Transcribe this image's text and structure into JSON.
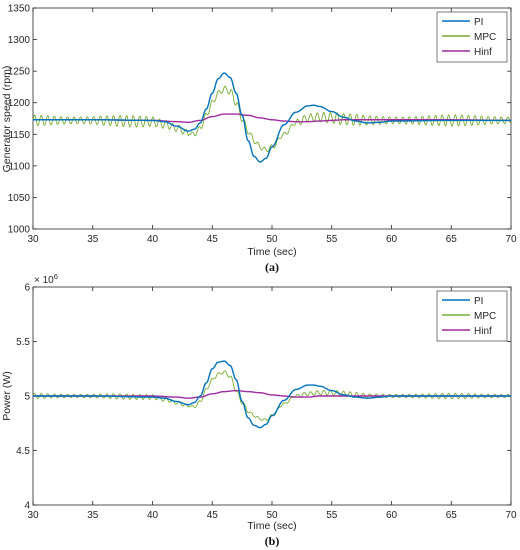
{
  "chart_data": [
    {
      "type": "line",
      "caption": "(a)",
      "xlabel": "Time (sec)",
      "ylabel": "Generator speed (rpm)",
      "xlim": [
        30,
        70
      ],
      "ylim": [
        1000,
        1350
      ],
      "xticks": [
        "30",
        "35",
        "40",
        "45",
        "50",
        "55",
        "60",
        "65",
        "70"
      ],
      "yticks": [
        "1000",
        "1050",
        "1100",
        "1150",
        "1200",
        "1250",
        "1300",
        "1350"
      ],
      "grid": false,
      "legend_position": "top-right",
      "series": [
        {
          "name": "PI",
          "color": "#0072BD",
          "x": [
            30,
            35,
            40,
            41,
            42,
            43,
            43.5,
            44,
            44.5,
            45,
            45.5,
            46,
            46.5,
            47,
            47.5,
            48,
            48.5,
            49,
            49.5,
            50,
            51,
            52,
            53,
            53.5,
            54,
            55,
            56,
            57,
            58,
            59,
            60,
            65,
            70
          ],
          "y": [
            1173,
            1173,
            1172,
            1170,
            1163,
            1155,
            1158,
            1168,
            1190,
            1215,
            1238,
            1247,
            1240,
            1215,
            1180,
            1140,
            1115,
            1106,
            1112,
            1130,
            1165,
            1185,
            1195,
            1196,
            1194,
            1186,
            1177,
            1171,
            1168,
            1169,
            1171,
            1172,
            1172
          ]
        },
        {
          "name": "MPC",
          "color": "#77AC30",
          "x": [
            30,
            35,
            40,
            41,
            42,
            43,
            43.5,
            44,
            44.5,
            45,
            45.5,
            46,
            46.5,
            47,
            47.5,
            48,
            48.5,
            49,
            49.5,
            50,
            51,
            52,
            53,
            54,
            55,
            56,
            57,
            58,
            60,
            65,
            70
          ],
          "y": [
            1172,
            1172,
            1170,
            1166,
            1160,
            1152,
            1150,
            1160,
            1180,
            1200,
            1215,
            1222,
            1218,
            1200,
            1175,
            1155,
            1140,
            1130,
            1125,
            1130,
            1150,
            1168,
            1176,
            1177,
            1176,
            1174,
            1173,
            1172,
            1172,
            1172,
            1172
          ],
          "oscillation_amplitude": 9,
          "oscillation_period_sec": 0.55
        },
        {
          "name": "Hinf",
          "color": "#A02CA0",
          "x": [
            30,
            35,
            40,
            42,
            43,
            44,
            45,
            46,
            47,
            48,
            49,
            50,
            51,
            52,
            53,
            54,
            55,
            56,
            58,
            60,
            65,
            70
          ],
          "y": [
            1173,
            1173,
            1172,
            1170,
            1169,
            1172,
            1178,
            1182,
            1182,
            1180,
            1176,
            1173,
            1171,
            1170,
            1170,
            1171,
            1172,
            1173,
            1173,
            1173,
            1173,
            1172
          ]
        }
      ]
    },
    {
      "type": "line",
      "caption": "(b)",
      "xlabel": "Time (sec)",
      "ylabel": "Power (W)",
      "exponent_label": "× 10",
      "exponent_power": "6",
      "xlim": [
        30,
        70
      ],
      "ylim": [
        4,
        6
      ],
      "xticks": [
        "30",
        "35",
        "40",
        "45",
        "50",
        "55",
        "60",
        "65",
        "70"
      ],
      "yticks": [
        "4",
        "4.5",
        "5",
        "5.5",
        "6"
      ],
      "grid": false,
      "legend_position": "top-right",
      "series": [
        {
          "name": "PI",
          "color": "#0072BD",
          "x": [
            30,
            35,
            40,
            41,
            42,
            43,
            43.5,
            44,
            44.5,
            45,
            45.5,
            46,
            46.5,
            47,
            47.5,
            48,
            48.5,
            49,
            49.5,
            50,
            51,
            52,
            53,
            53.5,
            54,
            55,
            56,
            57,
            58,
            59,
            60,
            65,
            70
          ],
          "y": [
            5.0,
            5.0,
            4.99,
            4.98,
            4.95,
            4.92,
            4.94,
            5.0,
            5.12,
            5.25,
            5.31,
            5.32,
            5.28,
            5.15,
            4.95,
            4.8,
            4.73,
            4.71,
            4.74,
            4.82,
            4.96,
            5.06,
            5.1,
            5.1,
            5.09,
            5.05,
            5.01,
            4.99,
            4.98,
            4.99,
            5.0,
            5.0,
            5.0
          ]
        },
        {
          "name": "MPC",
          "color": "#77AC30",
          "x": [
            30,
            35,
            40,
            41,
            42,
            43,
            43.5,
            44,
            44.5,
            45,
            45.5,
            46,
            46.5,
            47,
            47.5,
            48,
            48.5,
            49,
            49.5,
            50,
            51,
            52,
            53,
            54,
            55,
            56,
            57,
            58,
            60,
            65,
            70
          ],
          "y": [
            5.0,
            5.0,
            4.99,
            4.97,
            4.94,
            4.91,
            4.9,
            4.95,
            5.06,
            5.15,
            5.2,
            5.22,
            5.18,
            5.05,
            4.94,
            4.86,
            4.82,
            4.79,
            4.78,
            4.82,
            4.93,
            5.0,
            5.02,
            5.03,
            5.03,
            5.02,
            5.01,
            5.0,
            5.0,
            5.0,
            5.0
          ],
          "oscillation_amplitude": 0.025,
          "oscillation_period_sec": 0.55
        },
        {
          "name": "Hinf",
          "color": "#A02CA0",
          "x": [
            30,
            35,
            40,
            42,
            43,
            44,
            45,
            46,
            47,
            48,
            49,
            50,
            51,
            52,
            53,
            54,
            55,
            56,
            58,
            60,
            65,
            70
          ],
          "y": [
            5.0,
            5.0,
            5.0,
            4.99,
            4.98,
            4.99,
            5.02,
            5.04,
            5.05,
            5.04,
            5.03,
            5.01,
            5.0,
            4.99,
            4.99,
            5.0,
            5.0,
            5.0,
            5.0,
            5.0,
            5.0,
            5.0
          ]
        }
      ]
    }
  ]
}
